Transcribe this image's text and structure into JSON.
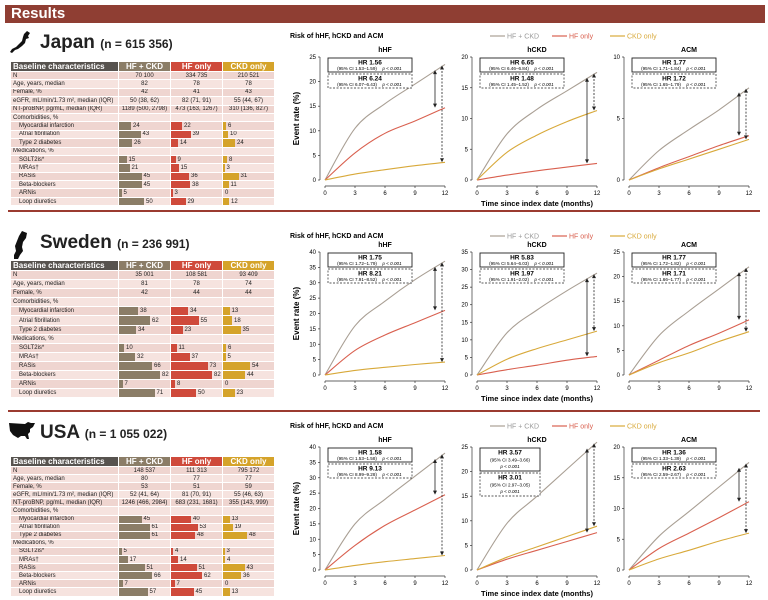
{
  "header": {
    "title": "Results"
  },
  "table_header": [
    "Baseline characteristics",
    "HF + CKD",
    "HF only",
    "CKD only"
  ],
  "colors": {
    "hf_ckd": "#8b7d67",
    "hf_only": "#cf4a3b",
    "ckd_only": "#d5a32a",
    "header": "#8f3e33"
  },
  "sections": [
    {
      "country": "Japan",
      "n_label": "(n = 615 356)",
      "icon": "japan-map-icon",
      "rows": [
        {
          "label": "N",
          "type": "value",
          "values": [
            "70 100",
            "334 735",
            "210 521"
          ]
        },
        {
          "label": "Age, years, median",
          "type": "value",
          "values": [
            "82",
            "78",
            "78"
          ]
        },
        {
          "label": "Female, %",
          "type": "value",
          "values": [
            "42",
            "41",
            "43"
          ]
        },
        {
          "label": "eGFR, mL/min/1.73 m², median (IQR)",
          "type": "value",
          "values": [
            "50 (38, 62)",
            "82 (71, 91)",
            "55 (44, 67)"
          ]
        },
        {
          "label": "NT-proBNP, pg/mL, median (IQR)",
          "type": "value",
          "values": [
            "1189 (500, 2798)",
            "473 (163, 1267)",
            "310 (136, 827)"
          ]
        },
        {
          "label": "Comorbidities, %",
          "type": "section"
        },
        {
          "label": "Myocardial infarction",
          "type": "bar",
          "values": [
            24,
            22,
            6
          ]
        },
        {
          "label": "Atrial fibrillation",
          "type": "bar",
          "values": [
            43,
            39,
            10
          ]
        },
        {
          "label": "Type 2 diabetes",
          "type": "bar",
          "values": [
            26,
            14,
            24
          ]
        },
        {
          "label": "Medications, %",
          "type": "section"
        },
        {
          "label": "SGLT2is*",
          "type": "bar",
          "values": [
            15,
            9,
            8
          ]
        },
        {
          "label": "MRAs†",
          "type": "bar",
          "values": [
            21,
            15,
            3
          ]
        },
        {
          "label": "RASis",
          "type": "bar",
          "values": [
            45,
            36,
            31
          ]
        },
        {
          "label": "Beta-blockers",
          "type": "bar",
          "values": [
            45,
            38,
            11
          ]
        },
        {
          "label": "ARNis",
          "type": "bar",
          "values": [
            5,
            3,
            0
          ]
        },
        {
          "label": "Loop diuretics",
          "type": "bar",
          "values": [
            50,
            29,
            12
          ]
        }
      ]
    },
    {
      "country": "Sweden",
      "n_label": "(n = 236 991)",
      "icon": "sweden-map-icon",
      "rows": [
        {
          "label": "N",
          "type": "value",
          "values": [
            "35 001",
            "108 581",
            "93 409"
          ]
        },
        {
          "label": "Age, years, median",
          "type": "value",
          "values": [
            "81",
            "78",
            "74"
          ]
        },
        {
          "label": "Female, %",
          "type": "value",
          "values": [
            "42",
            "44",
            "44"
          ]
        },
        {
          "label": "Comorbidities, %",
          "type": "section"
        },
        {
          "label": "Myocardial infarction",
          "type": "bar",
          "values": [
            38,
            34,
            13
          ]
        },
        {
          "label": "Atrial fibrillation",
          "type": "bar",
          "values": [
            62,
            55,
            18
          ]
        },
        {
          "label": "Type 2 diabetes",
          "type": "bar",
          "values": [
            34,
            23,
            35
          ]
        },
        {
          "label": "Medications, %",
          "type": "section"
        },
        {
          "label": "SGLT2is*",
          "type": "bar",
          "values": [
            10,
            11,
            6
          ]
        },
        {
          "label": "MRAs†",
          "type": "bar",
          "values": [
            32,
            37,
            5
          ]
        },
        {
          "label": "RASis",
          "type": "bar",
          "values": [
            66,
            73,
            54
          ]
        },
        {
          "label": "Beta-blockers",
          "type": "bar",
          "values": [
            82,
            82,
            44
          ]
        },
        {
          "label": "ARNis",
          "type": "bar",
          "values": [
            7,
            8,
            0
          ]
        },
        {
          "label": "Loop diuretics",
          "type": "bar",
          "values": [
            71,
            50,
            23
          ]
        }
      ]
    },
    {
      "country": "USA",
      "n_label": "(n = 1 055 022)",
      "icon": "usa-map-icon",
      "rows": [
        {
          "label": "N",
          "type": "value",
          "values": [
            "148 537",
            "111 313",
            "795 172"
          ]
        },
        {
          "label": "Age, years, median",
          "type": "value",
          "values": [
            "80",
            "77",
            "77"
          ]
        },
        {
          "label": "Female, %",
          "type": "value",
          "values": [
            "53",
            "51",
            "59"
          ]
        },
        {
          "label": "eGFR, mL/min/1.73 m², median (IQR)",
          "type": "value",
          "values": [
            "52 (41, 64)",
            "81 (70, 91)",
            "55 (46, 63)"
          ]
        },
        {
          "label": "NT-proBNP, pg/mL, median (IQR)",
          "type": "value",
          "values": [
            "1246 (466, 2984)",
            "683 (231, 1681)",
            "355 (143, 999)"
          ]
        },
        {
          "label": "Comorbidities, %",
          "type": "section"
        },
        {
          "label": "Myocardial infarction",
          "type": "bar",
          "values": [
            45,
            40,
            13
          ]
        },
        {
          "label": "Atrial fibrillation",
          "type": "bar",
          "values": [
            61,
            53,
            19
          ]
        },
        {
          "label": "Type 2 diabetes",
          "type": "bar",
          "values": [
            61,
            48,
            48
          ]
        },
        {
          "label": "Medications, %",
          "type": "section"
        },
        {
          "label": "SGLT2is*",
          "type": "bar",
          "values": [
            5,
            4,
            3
          ]
        },
        {
          "label": "MRAs†",
          "type": "bar",
          "values": [
            17,
            14,
            4
          ]
        },
        {
          "label": "RASis",
          "type": "bar",
          "values": [
            51,
            51,
            43
          ]
        },
        {
          "label": "Beta-blockers",
          "type": "bar",
          "values": [
            66,
            62,
            36
          ]
        },
        {
          "label": "ARNis",
          "type": "bar",
          "values": [
            7,
            7,
            0
          ]
        },
        {
          "label": "Loop diuretics",
          "type": "bar",
          "values": [
            57,
            45,
            13
          ]
        }
      ]
    }
  ],
  "charts_common": {
    "title": "Risk of hHF, hCKD and ACM",
    "ylabel": "Event rate (%)",
    "xlabel": "Time since index date (months)",
    "legend": [
      "HF + CKD",
      "HF only",
      "CKD only"
    ],
    "series_colors": [
      "#a99f94",
      "#d9604f",
      "#d8a93a"
    ]
  },
  "chart_data": [
    {
      "type": "line",
      "country": "Japan",
      "title": "hHF",
      "x": [
        0,
        3,
        6,
        9,
        12
      ],
      "xticks": [
        "0",
        "3",
        "6",
        "9",
        "12"
      ],
      "ylim": [
        0,
        25
      ],
      "yticks": [
        "0",
        "5",
        "10",
        "15",
        "20",
        "25"
      ],
      "series": [
        {
          "name": "HF + CKD",
          "values": [
            0,
            10.5,
            15.5,
            19.5,
            23.5
          ]
        },
        {
          "name": "HF only",
          "values": [
            0,
            5.5,
            9.5,
            12,
            14.7
          ]
        },
        {
          "name": "CKD only",
          "values": [
            0,
            1.2,
            2.1,
            2.9,
            3.6
          ]
        }
      ],
      "hr": [
        {
          "label": "HR 1.56",
          "ci": "(95% CI 1.53–1.59)",
          "p": "p < 0.001"
        },
        {
          "label": "HR 6.24",
          "ci": "(95% CI 6.07–6.43)",
          "p": "p < 0.001"
        }
      ]
    },
    {
      "type": "line",
      "country": "Japan",
      "title": "hCKD",
      "x": [
        0,
        3,
        6,
        9,
        12
      ],
      "xticks": [
        "0",
        "3",
        "6",
        "9",
        "12"
      ],
      "ylim": [
        0,
        20
      ],
      "yticks": [
        "0",
        "5",
        "10",
        "15",
        "20"
      ],
      "series": [
        {
          "name": "HF + CKD",
          "values": [
            0,
            7.5,
            11.5,
            14.5,
            17.5
          ]
        },
        {
          "name": "HF only",
          "values": [
            0,
            0.8,
            1.5,
            2.1,
            2.7
          ]
        },
        {
          "name": "CKD only",
          "values": [
            0,
            4.5,
            7.3,
            9.5,
            11.3
          ]
        }
      ],
      "hr": [
        {
          "label": "HR 6.65",
          "ci": "(95% CI 6.46–6.84)",
          "p": "p < 0.001"
        },
        {
          "label": "HR 1.48",
          "ci": "(95% CI 1.45–1.52)",
          "p": "p < 0.001"
        }
      ]
    },
    {
      "type": "line",
      "country": "Japan",
      "title": "ACM",
      "x": [
        0,
        3,
        6,
        9,
        12
      ],
      "xticks": [
        "0",
        "3",
        "6",
        "9",
        "12"
      ],
      "ylim": [
        0,
        10
      ],
      "yticks": [
        "0",
        "5",
        "10"
      ],
      "series": [
        {
          "name": "HF + CKD",
          "values": [
            0,
            2.4,
            4.1,
            5.7,
            7.5
          ]
        },
        {
          "name": "HF only",
          "values": [
            0,
            1.0,
            1.9,
            2.8,
            3.6
          ]
        },
        {
          "name": "CKD only",
          "values": [
            0,
            0.9,
            1.7,
            2.5,
            3.3
          ]
        }
      ],
      "hr": [
        {
          "label": "HR 1.77",
          "ci": "(95% CI 1.71–1.84)",
          "p": "p < 0.001"
        },
        {
          "label": "HR 1.72",
          "ci": "(95% CI 1.65–1.79)",
          "p": "p < 0.001"
        }
      ]
    },
    {
      "type": "line",
      "country": "Sweden",
      "title": "hHF",
      "x": [
        0,
        3,
        6,
        9,
        12
      ],
      "xticks": [
        "0",
        "3",
        "6",
        "9",
        "12"
      ],
      "ylim": [
        0,
        40
      ],
      "yticks": [
        "0",
        "5",
        "10",
        "15",
        "20",
        "25",
        "30",
        "35",
        "40"
      ],
      "series": [
        {
          "name": "HF + CKD",
          "values": [
            0,
            16,
            24,
            31,
            37
          ]
        },
        {
          "name": "HF only",
          "values": [
            0,
            8,
            13,
            17,
            21
          ]
        },
        {
          "name": "CKD only",
          "values": [
            0,
            1.5,
            2.5,
            3.4,
            4.2
          ]
        }
      ],
      "hr": [
        {
          "label": "HR 1.75",
          "ci": "(95% CI 1.72–1.79)",
          "p": "p < 0.001"
        },
        {
          "label": "HR 8.21",
          "ci": "(95% CI 7.91–8.52)",
          "p": "p < 0.001"
        }
      ]
    },
    {
      "type": "line",
      "country": "Sweden",
      "title": "hCKD",
      "x": [
        0,
        3,
        6,
        9,
        12
      ],
      "xticks": [
        "0",
        "3",
        "6",
        "9",
        "12"
      ],
      "ylim": [
        0,
        35
      ],
      "yticks": [
        "0",
        "5",
        "10",
        "15",
        "20",
        "25",
        "30",
        "35"
      ],
      "series": [
        {
          "name": "HF + CKD",
          "values": [
            0,
            12,
            18.5,
            24,
            29
          ]
        },
        {
          "name": "HF only",
          "values": [
            0,
            1.5,
            2.8,
            4.2,
            5.3
          ]
        },
        {
          "name": "CKD only",
          "values": [
            0,
            4.5,
            7.5,
            10,
            12.5
          ]
        }
      ],
      "hr": [
        {
          "label": "HR 5.83",
          "ci": "(95% CI 5.64–6.03)",
          "p": "p < 0.001"
        },
        {
          "label": "HR 1.97",
          "ci": "(95% CI 1.91–2.02)",
          "p": "p < 0.001"
        }
      ]
    },
    {
      "type": "line",
      "country": "Sweden",
      "title": "ACM",
      "x": [
        0,
        3,
        6,
        9,
        12
      ],
      "xticks": [
        "0",
        "3",
        "6",
        "9",
        "12"
      ],
      "ylim": [
        0,
        25
      ],
      "yticks": [
        "0",
        "5",
        "10",
        "15",
        "20",
        "25"
      ],
      "series": [
        {
          "name": "HF + CKD",
          "values": [
            0,
            8,
            13,
            17.5,
            22
          ]
        },
        {
          "name": "HF only",
          "values": [
            0,
            3,
            6,
            8.5,
            11.2
          ]
        },
        {
          "name": "CKD only",
          "values": [
            0,
            2.5,
            4.5,
            6.8,
            8.8
          ]
        }
      ],
      "hr": [
        {
          "label": "HR 1.77",
          "ci": "(95% CI 1.72–1.82)",
          "p": "p < 0.001"
        },
        {
          "label": "HR 1.71",
          "ci": "(95% CI 1.66–1.77)",
          "p": "p < 0.001"
        }
      ]
    },
    {
      "type": "line",
      "country": "USA",
      "title": "hHF",
      "x": [
        0,
        3,
        6,
        9,
        12
      ],
      "xticks": [
        "0",
        "3",
        "6",
        "9",
        "12"
      ],
      "ylim": [
        0,
        40
      ],
      "yticks": [
        "0",
        "5",
        "10",
        "15",
        "20",
        "25",
        "30",
        "35",
        "40"
      ],
      "series": [
        {
          "name": "HF + CKD",
          "values": [
            0,
            15,
            23,
            30.5,
            38
          ]
        },
        {
          "name": "HF only",
          "values": [
            0,
            8,
            14.5,
            19.5,
            24.5
          ]
        },
        {
          "name": "CKD only",
          "values": [
            0,
            1.5,
            2.7,
            3.7,
            4.7
          ]
        }
      ],
      "hr": [
        {
          "label": "HR 1.58",
          "ci": "(95% CI 1.53–1.58)",
          "p": "p < 0.001"
        },
        {
          "label": "HR 9.13",
          "ci": "(95% CI 8.99–9.28)",
          "p": "p < 0.001"
        }
      ]
    },
    {
      "type": "line",
      "country": "USA",
      "title": "hCKD",
      "x": [
        0,
        3,
        6,
        9,
        12
      ],
      "xticks": [
        "0",
        "3",
        "6",
        "9",
        "12"
      ],
      "ylim": [
        0,
        25
      ],
      "yticks": [
        "0",
        "5",
        "10",
        "15",
        "20",
        "25"
      ],
      "series": [
        {
          "name": "HF + CKD",
          "values": [
            0,
            9.5,
            15,
            20.5,
            26
          ]
        },
        {
          "name": "HF only",
          "values": [
            0,
            2.2,
            4,
            5.8,
            7.6
          ]
        },
        {
          "name": "CKD only",
          "values": [
            0,
            2.6,
            4.7,
            6.8,
            8.9
          ]
        }
      ],
      "hr": [
        {
          "label": "HR 3.57",
          "ci": "(95% CI 3.49–3.66)",
          "p": "p < 0.001"
        },
        {
          "label": "HR 3.01",
          "ci": "(95% CI 2.97–3.05)",
          "p": "p < 0.001"
        }
      ]
    },
    {
      "type": "line",
      "country": "USA",
      "title": "ACM",
      "x": [
        0,
        3,
        6,
        9,
        12
      ],
      "xticks": [
        "0",
        "3",
        "6",
        "9",
        "12"
      ],
      "ylim": [
        0,
        20
      ],
      "yticks": [
        "0",
        "5",
        "10",
        "15",
        "20"
      ],
      "series": [
        {
          "name": "HF + CKD",
          "values": [
            0,
            5.5,
            9.5,
            13.5,
            17.5
          ]
        },
        {
          "name": "HF only",
          "values": [
            0,
            3.5,
            6,
            8.5,
            11.1
          ]
        },
        {
          "name": "CKD only",
          "values": [
            0,
            1.8,
            3.2,
            4.7,
            6
          ]
        }
      ],
      "hr": [
        {
          "label": "HR 1.36",
          "ci": "(95% CI 1.33–1.39)",
          "p": "p < 0.001"
        },
        {
          "label": "HR 2.63",
          "ci": "(95% CI 2.59–2.67)",
          "p": "p < 0.001"
        }
      ]
    }
  ]
}
